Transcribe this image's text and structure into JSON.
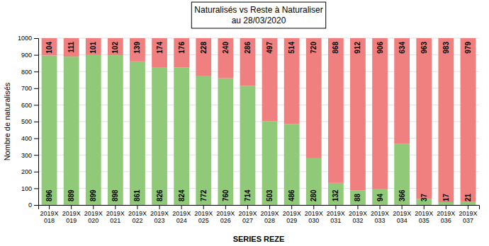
{
  "chart_data": {
    "type": "bar",
    "title": "Naturalisés vs Reste à Naturaliser",
    "subtitle": "au 28/03/2020",
    "xlabel": "SERIES REZE",
    "ylabel": "Nombre de naturalisés",
    "categories": [
      "2019X\n018",
      "2019X\n019",
      "2019X\n020",
      "2019X\n021",
      "2019X\n022",
      "2019X\n023",
      "2019X\n024",
      "2019X\n025",
      "2019X\n026",
      "2019X\n027",
      "2019X\n028",
      "2019X\n029",
      "2019X\n030",
      "2019X\n031",
      "2019X\n032",
      "2019X\n033",
      "2019X\n034",
      "2019X\n035",
      "2019X\n036",
      "2019X\n037"
    ],
    "series": [
      {
        "color": "#90C978",
        "values": [
          896,
          889,
          899,
          898,
          861,
          826,
          824,
          772,
          760,
          714,
          503,
          486,
          280,
          132,
          88,
          94,
          366,
          37,
          17,
          21
        ]
      },
      {
        "color": "#F08080",
        "values": [
          104,
          111,
          101,
          102,
          139,
          174,
          176,
          228,
          240,
          286,
          497,
          514,
          720,
          868,
          912,
          906,
          634,
          963,
          983,
          979
        ]
      }
    ],
    "stacked": true,
    "data_labels": true,
    "grid": true,
    "ylim": [
      0,
      1000
    ],
    "yticks": [
      0,
      100,
      200,
      300,
      400,
      500,
      600,
      700,
      800,
      900,
      1000
    ]
  }
}
